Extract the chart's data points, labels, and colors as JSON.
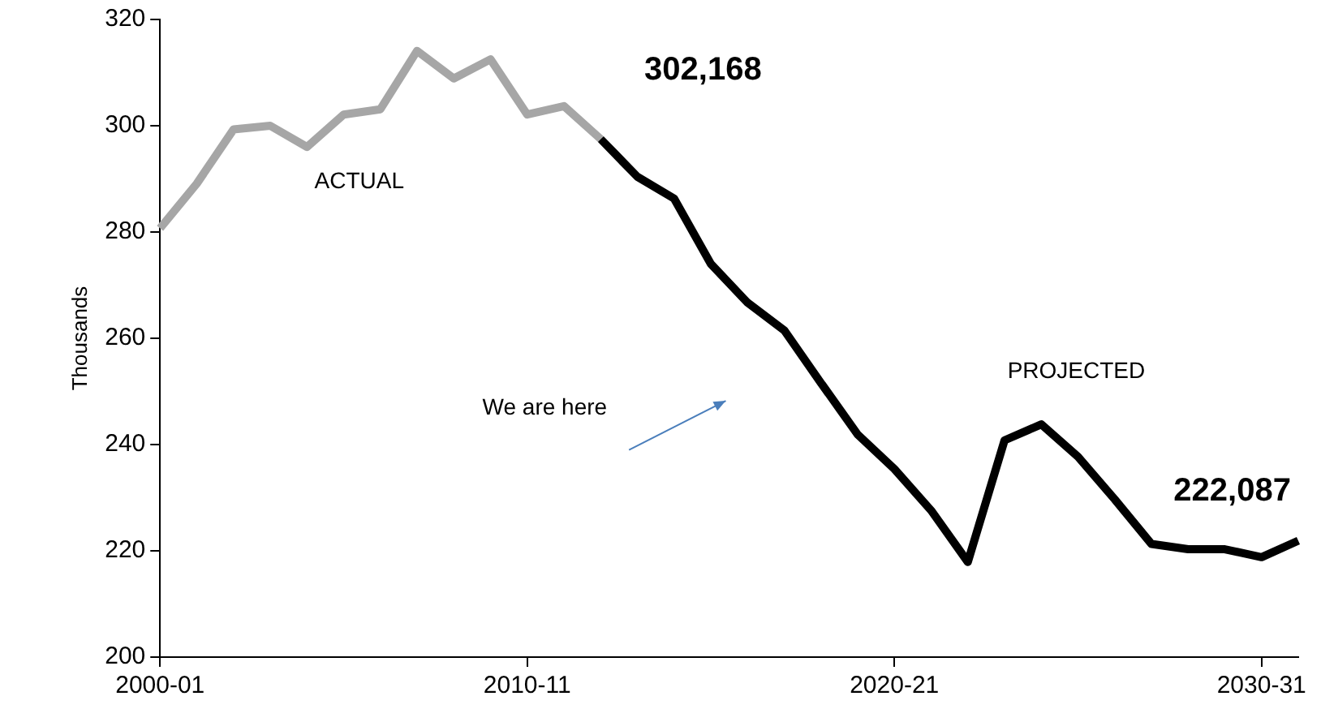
{
  "chart_data": {
    "type": "line",
    "ylabel": "Thousands",
    "categories": [
      "2000-01",
      null,
      null,
      null,
      null,
      null,
      null,
      null,
      null,
      null,
      "2010-11",
      null,
      null,
      null,
      null,
      null,
      null,
      null,
      null,
      null,
      "2020-21",
      null,
      null,
      null,
      null,
      null,
      null,
      null,
      null,
      null,
      "2030-31",
      null
    ],
    "series": [
      {
        "name": "ACTUAL",
        "color": "#a6a6a6",
        "values": [
          280.7,
          289.1,
          299.3,
          300.0,
          296.0,
          302.1,
          303.1,
          314.1,
          308.9,
          312.5,
          302.1,
          303.7,
          297.5,
          null,
          null,
          null,
          null,
          null,
          null,
          null,
          null,
          null,
          null,
          null,
          null,
          null,
          null,
          null,
          null,
          null,
          null,
          null
        ]
      },
      {
        "name": "PROJECTED",
        "color": "#000000",
        "values": [
          null,
          null,
          null,
          null,
          null,
          null,
          null,
          null,
          null,
          null,
          null,
          null,
          297.5,
          290.4,
          286.3,
          274.0,
          266.7,
          261.5,
          251.6,
          241.9,
          235.4,
          227.6,
          217.9,
          240.8,
          243.8,
          237.7,
          229.7,
          221.3,
          220.3,
          220.3,
          218.8,
          221.9
        ]
      }
    ],
    "ylim": [
      200,
      320
    ],
    "yticks": [
      200,
      220,
      240,
      260,
      280,
      300,
      320
    ],
    "grid": false,
    "legend": false,
    "marker": "none",
    "line_style": "solid",
    "annotations": [
      "302,168",
      "222,087",
      "We are here"
    ]
  }
}
